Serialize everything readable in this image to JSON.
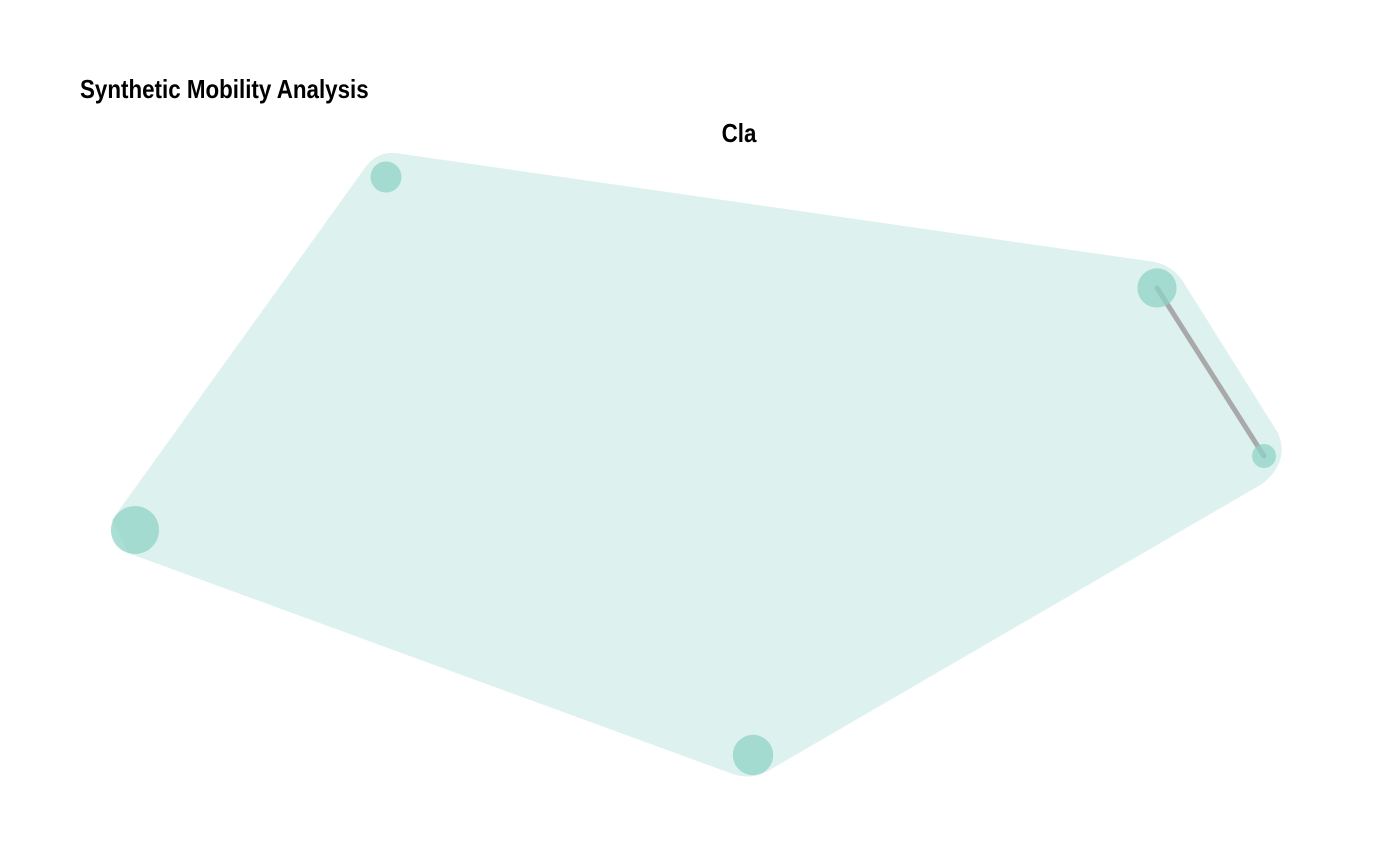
{
  "title": "Synthetic Mobility Analysis",
  "cluster": {
    "label": "Cla",
    "fill_color": "#DDF1EE",
    "node_color": "#8FD3C7",
    "edge_color": "#A9A9A9"
  },
  "nodes": [
    {
      "id": "n1",
      "size": 1.0
    },
    {
      "id": "n2",
      "size": 1.6
    },
    {
      "id": "n3",
      "size": 0.6
    },
    {
      "id": "n4",
      "size": 2.4
    },
    {
      "id": "n5",
      "size": 1.7
    }
  ],
  "edges": [
    {
      "from": "n2",
      "to": "n3"
    }
  ]
}
